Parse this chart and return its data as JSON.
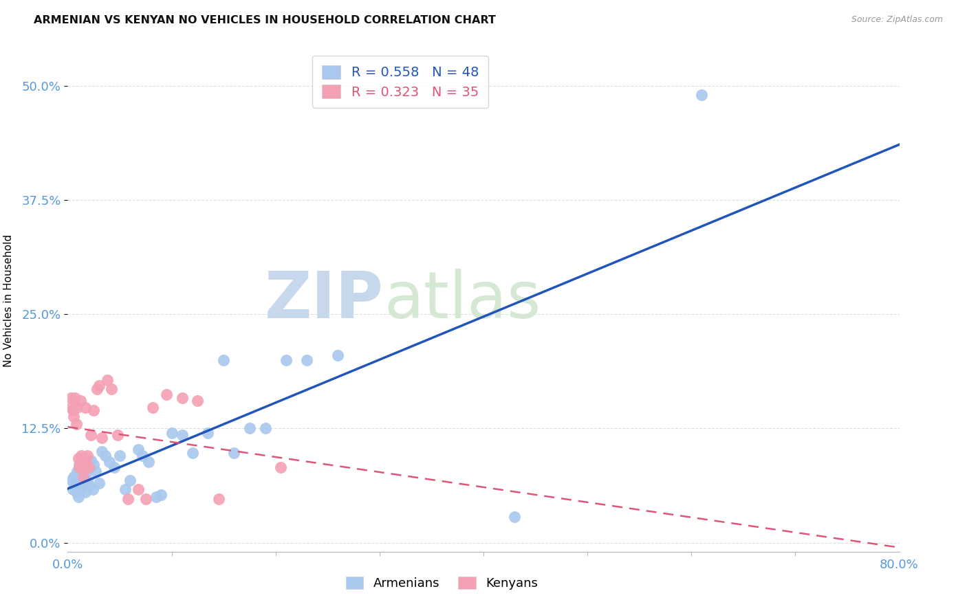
{
  "title": "ARMENIAN VS KENYAN NO VEHICLES IN HOUSEHOLD CORRELATION CHART",
  "source": "Source: ZipAtlas.com",
  "ylabel": "No Vehicles in Household",
  "xlim": [
    0.0,
    0.8
  ],
  "ylim": [
    -0.01,
    0.54
  ],
  "x_ticks": [
    0.0,
    0.8
  ],
  "x_tick_labels": [
    "0.0%",
    "80.0%"
  ],
  "y_ticks": [
    0.0,
    0.125,
    0.25,
    0.375,
    0.5
  ],
  "y_tick_labels": [
    "0.0%",
    "12.5%",
    "25.0%",
    "37.5%",
    "50.0%"
  ],
  "armenian_R": "0.558",
  "armenian_N": "48",
  "kenyan_R": "0.323",
  "kenyan_N": "35",
  "armenian_scatter_color": "#A8C8EE",
  "kenyan_scatter_color": "#F4A0B4",
  "armenian_line_color": "#2255BB",
  "kenyan_line_color": "#DD5577",
  "watermark_color": "#D0E4F4",
  "grid_color": "#DDDDDD",
  "tick_color": "#5599DD",
  "armenians_x": [
    0.004,
    0.005,
    0.006,
    0.007,
    0.008,
    0.009,
    0.01,
    0.011,
    0.012,
    0.013,
    0.014,
    0.015,
    0.016,
    0.017,
    0.018,
    0.019,
    0.02,
    0.021,
    0.022,
    0.024,
    0.025,
    0.027,
    0.03,
    0.033,
    0.036,
    0.04,
    0.045,
    0.05,
    0.055,
    0.06,
    0.068,
    0.072,
    0.078,
    0.085,
    0.09,
    0.1,
    0.11,
    0.12,
    0.135,
    0.15,
    0.16,
    0.175,
    0.19,
    0.21,
    0.23,
    0.26,
    0.43,
    0.61
  ],
  "armenians_y": [
    0.068,
    0.058,
    0.072,
    0.063,
    0.055,
    0.078,
    0.05,
    0.085,
    0.07,
    0.06,
    0.068,
    0.075,
    0.062,
    0.055,
    0.078,
    0.068,
    0.062,
    0.082,
    0.09,
    0.058,
    0.085,
    0.078,
    0.065,
    0.1,
    0.095,
    0.088,
    0.082,
    0.095,
    0.058,
    0.068,
    0.102,
    0.095,
    0.088,
    0.05,
    0.052,
    0.12,
    0.118,
    0.098,
    0.12,
    0.2,
    0.098,
    0.125,
    0.125,
    0.2,
    0.2,
    0.205,
    0.028,
    0.49
  ],
  "kenyans_x": [
    0.003,
    0.004,
    0.005,
    0.006,
    0.007,
    0.008,
    0.009,
    0.01,
    0.011,
    0.012,
    0.013,
    0.014,
    0.015,
    0.016,
    0.017,
    0.018,
    0.019,
    0.02,
    0.022,
    0.025,
    0.028,
    0.03,
    0.033,
    0.038,
    0.042,
    0.048,
    0.058,
    0.068,
    0.075,
    0.082,
    0.095,
    0.11,
    0.125,
    0.145,
    0.205
  ],
  "kenyans_y": [
    0.158,
    0.148,
    0.145,
    0.138,
    0.158,
    0.13,
    0.148,
    0.092,
    0.082,
    0.155,
    0.095,
    0.082,
    0.072,
    0.092,
    0.148,
    0.085,
    0.095,
    0.082,
    0.118,
    0.145,
    0.168,
    0.172,
    0.115,
    0.178,
    0.168,
    0.118,
    0.048,
    0.058,
    0.048,
    0.148,
    0.162,
    0.158,
    0.155,
    0.048,
    0.082
  ]
}
